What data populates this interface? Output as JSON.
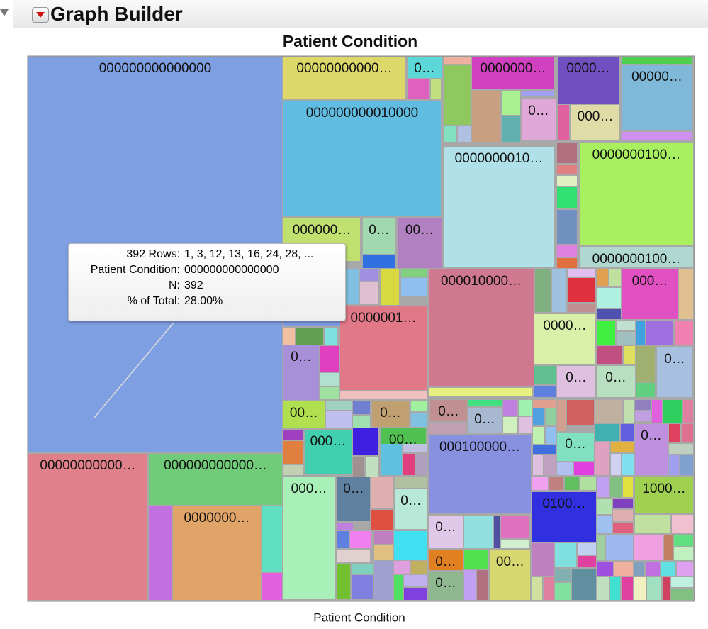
{
  "header": {
    "title": "Graph Builder"
  },
  "chart": {
    "title": "Patient Condition",
    "x_label": "Patient Condition",
    "tiles": [
      {
        "label": "000000000000000",
        "color": "#7f9fe3"
      },
      {
        "label": "00000000000…",
        "color": "#e0808a"
      },
      {
        "label": "000000000000…",
        "color": "#70cc78"
      },
      {
        "label": "0000000…",
        "color": "#e0a468"
      },
      {
        "label": "00000000000…",
        "color": "#dcd86a"
      },
      {
        "label": "0…",
        "color": "#5dd8d8"
      },
      {
        "label": "0000000…",
        "color": "#d040c0"
      },
      {
        "label": "0000…",
        "color": "#7050c0"
      },
      {
        "label": "00000…",
        "color": "#7fb8d8"
      },
      {
        "label": "000000000010000",
        "color": "#60bce0"
      },
      {
        "label": "0…",
        "color": "#e0a8d8"
      },
      {
        "label": "000…",
        "color": "#e0dca8"
      },
      {
        "label": "0000000010…",
        "color": "#b0e0e8"
      },
      {
        "label": "0000000100…",
        "color": "#a8f060"
      },
      {
        "label": "0000000100…",
        "color": "#b0d8d0"
      },
      {
        "label": "000000…",
        "color": "#c0e070"
      },
      {
        "label": "0…",
        "color": "#a0d8b0"
      },
      {
        "label": "00…",
        "color": "#b080c0"
      },
      {
        "label": "000010000…",
        "color": "#d07890"
      },
      {
        "label": "0000001…",
        "color": "#e07888"
      },
      {
        "label": "000…",
        "color": "#e050c0"
      },
      {
        "label": "0000…",
        "color": "#d8f0a8"
      },
      {
        "label": "0…",
        "color": "#a890d8"
      },
      {
        "label": "0…",
        "color": "#e0c0e0"
      },
      {
        "label": "0…",
        "color": "#b8e0c0"
      },
      {
        "label": "0…",
        "color": "#a8c0e0"
      },
      {
        "label": "00…",
        "color": "#b0e050"
      },
      {
        "label": "0…",
        "color": "#c0a070"
      },
      {
        "label": "0…",
        "color": "#c09090"
      },
      {
        "label": "0…",
        "color": "#a8b8d0"
      },
      {
        "label": "000…",
        "color": "#40d0b0"
      },
      {
        "label": "00…",
        "color": "#50c050"
      },
      {
        "label": "000100000…",
        "color": "#8890e0"
      },
      {
        "label": "0…",
        "color": "#80e0c0"
      },
      {
        "label": "0…",
        "color": "#c090e0"
      },
      {
        "label": "000…",
        "color": "#a8f0b8"
      },
      {
        "label": "0…",
        "color": "#6080a0"
      },
      {
        "label": "0…",
        "color": "#b8e8d8"
      },
      {
        "label": "0100…",
        "color": "#3030e0"
      },
      {
        "label": "1000…",
        "color": "#a0d050"
      },
      {
        "label": "0…",
        "color": "#e0c8e8"
      },
      {
        "label": "0…",
        "color": "#e08020"
      },
      {
        "label": "00…",
        "color": "#d8d870"
      },
      {
        "label": "0…",
        "color": "#90b890"
      }
    ]
  },
  "tooltip": {
    "rows": [
      [
        "392 Rows:",
        "1, 3, 12, 13, 16, 24, 28, ..."
      ],
      [
        "Patient Condition:",
        "000000000000000"
      ],
      [
        "N:",
        "392"
      ],
      [
        "% of Total:",
        "28.00%"
      ]
    ]
  }
}
